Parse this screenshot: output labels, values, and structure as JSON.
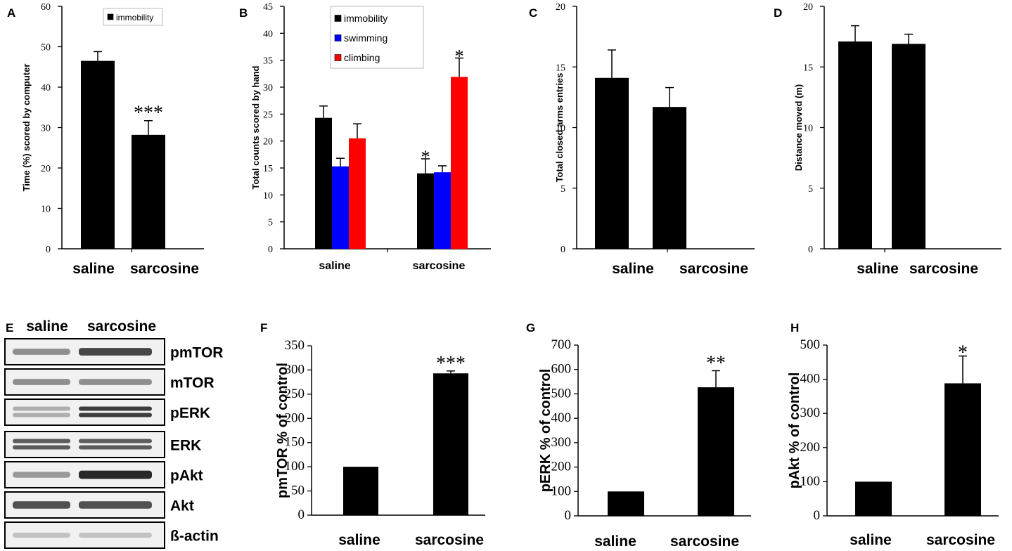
{
  "chart_data": [
    {
      "panel": "A",
      "type": "bar",
      "categories": [
        "saline",
        "sarcosine"
      ],
      "series": [
        {
          "name": "immobility",
          "values": [
            46.5,
            28.2
          ],
          "errors": [
            2.3,
            3.5
          ],
          "color": "#000000"
        }
      ],
      "ylabel": "Time (%) scored by computer",
      "ylim": [
        0,
        60
      ],
      "yticks": [
        "0",
        "10",
        "20",
        "30",
        "40",
        "50",
        "60"
      ],
      "legend": [
        "immobility"
      ],
      "annotations": [
        {
          "category": "sarcosine",
          "text": "***"
        }
      ]
    },
    {
      "panel": "B",
      "type": "bar",
      "categories": [
        "saline",
        "sarcosine"
      ],
      "series": [
        {
          "name": "immobility",
          "values": [
            24.3,
            14.0
          ],
          "errors": [
            2.2,
            2.7
          ],
          "color": "#000000"
        },
        {
          "name": "swimming",
          "values": [
            15.3,
            14.2
          ],
          "errors": [
            1.5,
            1.2
          ],
          "color": "#0000ff"
        },
        {
          "name": "climbing",
          "values": [
            20.5,
            31.9
          ],
          "errors": [
            2.7,
            3.5
          ],
          "color": "#ff0000"
        }
      ],
      "ylabel": "Total counts scored by hand",
      "ylim": [
        0,
        45
      ],
      "yticks": [
        "0",
        "5",
        "10",
        "15",
        "20",
        "25",
        "30",
        "35",
        "40",
        "45"
      ],
      "legend": [
        "immobility",
        "swimming",
        "climbing"
      ],
      "annotations": [
        {
          "category": "sarcosine",
          "series": "immobility",
          "text": "*"
        },
        {
          "category": "sarcosine",
          "series": "climbing",
          "text": "*"
        }
      ]
    },
    {
      "panel": "C",
      "type": "bar",
      "categories": [
        "saline",
        "sarcosine"
      ],
      "series": [
        {
          "name": "closed arms entries",
          "values": [
            14.1,
            11.7
          ],
          "errors": [
            2.3,
            1.6
          ],
          "color": "#000000"
        }
      ],
      "ylabel": "Total closed arms entries",
      "ylim": [
        0,
        20
      ],
      "yticks": [
        "0",
        "5",
        "10",
        "15",
        "20"
      ]
    },
    {
      "panel": "D",
      "type": "bar",
      "categories": [
        "saline",
        "sarcosine"
      ],
      "series": [
        {
          "name": "distance moved",
          "values": [
            17.1,
            16.9
          ],
          "errors": [
            1.3,
            0.8
          ],
          "color": "#000000"
        }
      ],
      "ylabel": "Distance moved (m)",
      "ylim": [
        0,
        20
      ],
      "yticks": [
        "0",
        "5",
        "10",
        "15",
        "20"
      ]
    },
    {
      "panel": "F",
      "type": "bar",
      "categories": [
        "saline",
        "sarcosine"
      ],
      "series": [
        {
          "name": "pmTOR",
          "values": [
            100,
            293
          ],
          "errors": [
            0,
            5
          ],
          "color": "#000000"
        }
      ],
      "ylabel": "pmTOR % of control",
      "ylim": [
        0,
        350
      ],
      "yticks": [
        "0",
        "50",
        "100",
        "150",
        "200",
        "250",
        "300",
        "350"
      ],
      "annotations": [
        {
          "category": "sarcosine",
          "text": "***"
        }
      ]
    },
    {
      "panel": "G",
      "type": "bar",
      "categories": [
        "saline",
        "sarcosine"
      ],
      "series": [
        {
          "name": "pERK",
          "values": [
            100,
            527
          ],
          "errors": [
            0,
            68
          ],
          "color": "#000000"
        }
      ],
      "ylabel": "pERK % of control",
      "ylim": [
        0,
        700
      ],
      "yticks": [
        "0",
        "100",
        "200",
        "300",
        "400",
        "500",
        "600",
        "700"
      ],
      "annotations": [
        {
          "category": "sarcosine",
          "text": "**"
        }
      ]
    },
    {
      "panel": "H",
      "type": "bar",
      "categories": [
        "saline",
        "sarcosine"
      ],
      "series": [
        {
          "name": "pAkt",
          "values": [
            100,
            388
          ],
          "errors": [
            0,
            80
          ],
          "color": "#000000"
        }
      ],
      "ylabel": "pAkt % of control",
      "ylim": [
        0,
        500
      ],
      "yticks": [
        "0",
        "100",
        "200",
        "300",
        "400",
        "500"
      ],
      "annotations": [
        {
          "category": "sarcosine",
          "text": "*"
        }
      ]
    }
  ],
  "blot": {
    "panel": "E",
    "lanes": [
      "saline",
      "sarcosine"
    ],
    "rows": [
      {
        "label": "pmTOR",
        "intensity": [
          0.45,
          0.8
        ],
        "double": false
      },
      {
        "label": "mTOR",
        "intensity": [
          0.45,
          0.45
        ],
        "double": false
      },
      {
        "label": "pERK",
        "intensity": [
          0.3,
          0.85
        ],
        "double": true
      },
      {
        "label": "ERK",
        "intensity": [
          0.7,
          0.7
        ],
        "double": true
      },
      {
        "label": "pAkt",
        "intensity": [
          0.4,
          0.95
        ],
        "double": false
      },
      {
        "label": "Akt",
        "intensity": [
          0.75,
          0.75
        ],
        "double": false
      },
      {
        "label": "ß-actin",
        "intensity": [
          0.2,
          0.2
        ],
        "double": false
      }
    ]
  }
}
